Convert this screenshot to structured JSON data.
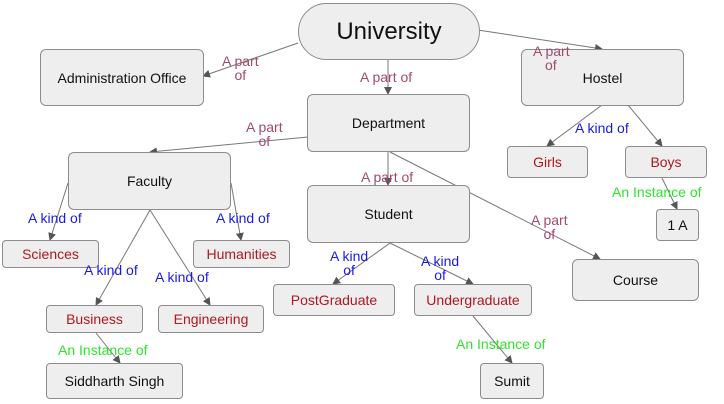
{
  "nodes": {
    "university": "University",
    "administration_office": "Administration Office",
    "hostel": "Hostel",
    "department": "Department",
    "faculty": "Faculty",
    "student": "Student",
    "girls": "Girls",
    "boys": "Boys",
    "one_a": "1 A",
    "sciences": "Sciences",
    "humanities": "Humanities",
    "business": "Business",
    "engineering": "Engineering",
    "postgraduate": "PostGraduate",
    "undergraduate": "Undergraduate",
    "course": "Course",
    "siddharth_singh": "Siddharth Singh",
    "sumit": "Sumit"
  },
  "edge_labels": {
    "univ_admin": [
      "A part",
      "of"
    ],
    "univ_dept": [
      "A part of"
    ],
    "univ_hostel": [
      "A part",
      "of"
    ],
    "dept_faculty": [
      "A part",
      "of"
    ],
    "dept_student": [
      "A part of"
    ],
    "dept_course": [
      "A part",
      "of"
    ],
    "hostel_kind": [
      "A kind of"
    ],
    "boys_instance": [
      "An Instance of"
    ],
    "faculty_sciences": [
      "A kind of"
    ],
    "faculty_humanities": [
      "A kind of"
    ],
    "faculty_business": [
      "A kind of"
    ],
    "faculty_engineering": [
      "A kind of"
    ],
    "student_postgraduate": [
      "A kind",
      "of"
    ],
    "student_undergraduate": [
      "A kind",
      "of"
    ],
    "business_instance": [
      "An Instance of"
    ],
    "undergraduate_instance": [
      "An Instance of"
    ]
  }
}
